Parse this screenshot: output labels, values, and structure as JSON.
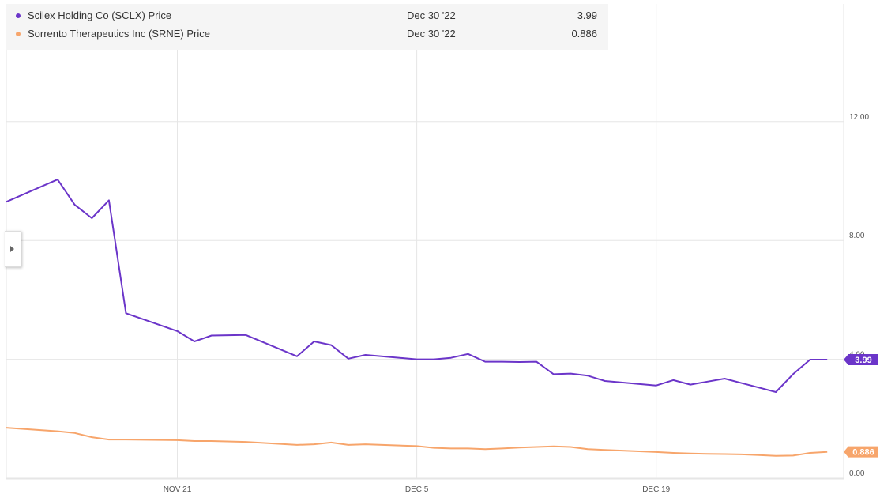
{
  "legend": {
    "rows": [
      {
        "name": "Scilex Holding Co (SCLX) Price",
        "date": "Dec 30 '22",
        "value": "3.99",
        "color": "#6b35c9"
      },
      {
        "name": "Sorrento Therapeutics Inc (SRNE) Price",
        "date": "Dec 30 '22",
        "value": "0.886",
        "color": "#f7a56b"
      }
    ]
  },
  "chart_data": {
    "type": "line",
    "x_tick_labels": [
      "NOV 21",
      "DEC 5",
      "DEC 19"
    ],
    "y_tick_labels": [
      "0.00",
      "4.00",
      "8.00",
      "12.00"
    ],
    "ylim": [
      0,
      16
    ],
    "grid": true,
    "series": [
      {
        "name": "Scilex Holding Co (SCLX) Price",
        "color": "#6b35c9",
        "end_label": "3.99",
        "x": [
          0,
          3,
          4,
          5,
          6,
          7,
          10,
          11,
          12,
          14,
          17,
          18,
          19,
          20,
          21,
          24,
          25,
          26,
          27,
          28,
          29,
          30,
          31,
          32,
          33,
          34,
          35,
          38,
          39,
          40,
          41,
          42,
          43,
          44,
          45,
          46,
          47,
          48
        ],
        "values": [
          9.3,
          10.05,
          9.2,
          8.75,
          9.35,
          5.55,
          4.95,
          4.6,
          4.8,
          4.82,
          4.1,
          4.6,
          4.48,
          4.02,
          4.15,
          4.0,
          4.0,
          4.05,
          4.18,
          3.92,
          3.92,
          3.91,
          3.92,
          3.5,
          3.52,
          3.45,
          3.27,
          3.12,
          3.3,
          3.15,
          3.25,
          3.35,
          3.2,
          3.05,
          2.9,
          3.5,
          3.99,
          3.99
        ]
      },
      {
        "name": "Sorrento Therapeutics Inc (SRNE) Price",
        "color": "#f7a56b",
        "end_label": "0.886",
        "x": [
          0,
          3,
          4,
          5,
          6,
          7,
          10,
          11,
          12,
          14,
          17,
          18,
          19,
          20,
          21,
          24,
          25,
          26,
          27,
          28,
          29,
          30,
          31,
          32,
          33,
          34,
          35,
          38,
          39,
          40,
          41,
          42,
          43,
          44,
          45,
          46,
          47,
          48
        ],
        "values": [
          1.7,
          1.58,
          1.52,
          1.38,
          1.3,
          1.3,
          1.28,
          1.25,
          1.25,
          1.22,
          1.12,
          1.14,
          1.2,
          1.12,
          1.14,
          1.08,
          1.02,
          1.0,
          1.0,
          0.98,
          1.0,
          1.03,
          1.05,
          1.07,
          1.05,
          0.98,
          0.95,
          0.88,
          0.85,
          0.83,
          0.82,
          0.81,
          0.8,
          0.78,
          0.75,
          0.76,
          0.85,
          0.886
        ]
      }
    ]
  }
}
